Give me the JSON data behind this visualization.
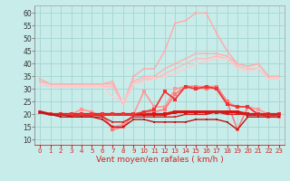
{
  "x": [
    0,
    1,
    2,
    3,
    4,
    5,
    6,
    7,
    8,
    9,
    10,
    11,
    12,
    13,
    14,
    15,
    16,
    17,
    18,
    19,
    20,
    21,
    22,
    23
  ],
  "background_color": "#c8ecea",
  "grid_color": "#a8d8d4",
  "xlabel": "Vent moyen/en rafales ( km/h )",
  "ylabel_ticks": [
    10,
    15,
    20,
    25,
    30,
    35,
    40,
    45,
    50,
    55,
    60
  ],
  "ylim": [
    8,
    63
  ],
  "xlim": [
    -0.5,
    23.5
  ],
  "lines": [
    {
      "color": "#ffaaaa",
      "lw": 1.0,
      "marker": "s",
      "ms": 2.0,
      "values": [
        34,
        32,
        32,
        32,
        32,
        32,
        32,
        33,
        24,
        35,
        38,
        38,
        45,
        56,
        57,
        60,
        60,
        52,
        45,
        40,
        39,
        40,
        35,
        35
      ]
    },
    {
      "color": "#ffb0b0",
      "lw": 1.0,
      "marker": "s",
      "ms": 2.0,
      "values": [
        33,
        32,
        32,
        32,
        32,
        32,
        32,
        32,
        24,
        33,
        35,
        35,
        38,
        40,
        42,
        44,
        44,
        44,
        43,
        40,
        39,
        40,
        35,
        35
      ]
    },
    {
      "color": "#ffbbbb",
      "lw": 1.0,
      "marker": "s",
      "ms": 2.0,
      "values": [
        32,
        31,
        31,
        31,
        31,
        31,
        31,
        31,
        24,
        32,
        34,
        34,
        36,
        38,
        40,
        42,
        42,
        43,
        42,
        39,
        38,
        38,
        34,
        34
      ]
    },
    {
      "color": "#ffcccc",
      "lw": 1.0,
      "marker": "s",
      "ms": 2.0,
      "values": [
        32,
        31,
        31,
        31,
        31,
        31,
        31,
        27,
        25,
        32,
        33,
        34,
        35,
        36,
        38,
        40,
        41,
        42,
        42,
        38,
        37,
        38,
        34,
        34
      ]
    },
    {
      "color": "#ff9999",
      "lw": 1.2,
      "marker": "s",
      "ms": 2.5,
      "values": [
        21,
        20,
        20,
        20,
        22,
        21,
        19,
        15,
        16,
        20,
        29,
        23,
        23,
        30,
        31,
        31,
        31,
        31,
        25,
        23,
        23,
        22,
        20,
        20
      ]
    },
    {
      "color": "#ff7777",
      "lw": 1.2,
      "marker": "s",
      "ms": 2.5,
      "values": [
        21,
        20,
        20,
        20,
        20,
        20,
        20,
        14,
        15,
        20,
        21,
        21,
        22,
        28,
        31,
        31,
        30,
        31,
        25,
        14,
        23,
        20,
        19,
        19
      ]
    },
    {
      "color": "#dd1111",
      "lw": 2.2,
      "marker": "s",
      "ms": 2.5,
      "values": [
        21,
        20,
        20,
        20,
        20,
        20,
        20,
        20,
        20,
        20,
        20,
        20,
        20,
        21,
        21,
        21,
        21,
        21,
        21,
        21,
        20,
        20,
        20,
        20
      ]
    },
    {
      "color": "#ee3333",
      "lw": 1.2,
      "marker": "s",
      "ms": 2.5,
      "values": [
        21,
        20,
        20,
        20,
        20,
        20,
        20,
        20,
        20,
        20,
        21,
        22,
        29,
        26,
        31,
        30,
        31,
        30,
        24,
        23,
        23,
        20,
        20,
        20
      ]
    },
    {
      "color": "#cc2222",
      "lw": 1.0,
      "marker": "s",
      "ms": 2.0,
      "values": [
        21,
        20,
        20,
        19,
        19,
        19,
        19,
        17,
        17,
        19,
        19,
        19,
        19,
        19,
        20,
        20,
        20,
        21,
        20,
        20,
        20,
        20,
        20,
        20
      ]
    },
    {
      "color": "#bb1111",
      "lw": 1.0,
      "marker": "s",
      "ms": 2.0,
      "values": [
        21,
        20,
        19,
        19,
        19,
        19,
        18,
        15,
        15,
        18,
        18,
        17,
        17,
        17,
        17,
        18,
        18,
        18,
        17,
        14,
        19,
        19,
        19,
        19
      ]
    }
  ]
}
